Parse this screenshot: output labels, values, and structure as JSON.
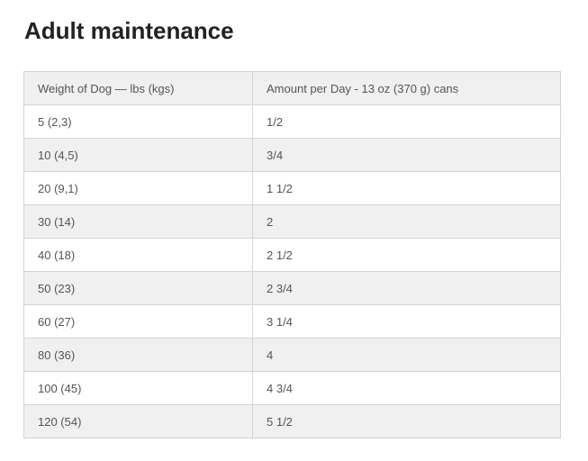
{
  "title": "Adult maintenance",
  "table": {
    "header": [
      "Weight of Dog — lbs (kgs)",
      "Amount per Day - 13 oz (370 g) cans"
    ],
    "rows": [
      [
        "5 (2,3)",
        "1/2"
      ],
      [
        "10 (4,5)",
        "3/4"
      ],
      [
        "20 (9,1)",
        "1 1/2"
      ],
      [
        "30 (14)",
        "2"
      ],
      [
        "40 (18)",
        "2 1/2"
      ],
      [
        "50 (23)",
        "2 3/4"
      ],
      [
        "60 (27)",
        "3 1/4"
      ],
      [
        "80 (36)",
        "4"
      ],
      [
        "100 (45)",
        "4 3/4"
      ],
      [
        "120 (54)",
        "5 1/2"
      ]
    ]
  }
}
